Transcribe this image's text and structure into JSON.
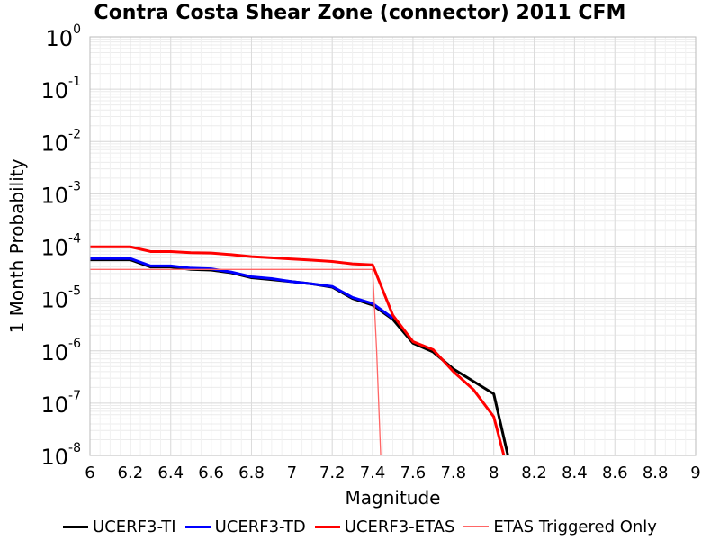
{
  "chart_data": {
    "type": "line",
    "title": "Contra Costa Shear Zone (connector) 2011 CFM",
    "xlabel": "Magnitude",
    "ylabel": "1 Month Probability",
    "xlim": [
      6,
      9
    ],
    "ylim": [
      1e-08,
      1
    ],
    "yscale": "log",
    "grid": true,
    "legend_position": "bottom",
    "x_ticks": [
      "6",
      "6.2",
      "6.4",
      "6.6",
      "6.8",
      "7",
      "7.2",
      "7.4",
      "7.6",
      "7.8",
      "8",
      "8.2",
      "8.4",
      "8.6",
      "8.8",
      "9"
    ],
    "y_ticks": [
      {
        "base": "10",
        "exp": "0"
      },
      {
        "base": "10",
        "exp": "-1"
      },
      {
        "base": "10",
        "exp": "-2"
      },
      {
        "base": "10",
        "exp": "-3"
      },
      {
        "base": "10",
        "exp": "-4"
      },
      {
        "base": "10",
        "exp": "-5"
      },
      {
        "base": "10",
        "exp": "-6"
      },
      {
        "base": "10",
        "exp": "-7"
      },
      {
        "base": "10",
        "exp": "-8"
      }
    ],
    "series": [
      {
        "name": "UCERF3-TI",
        "color": "#000000",
        "x": [
          6.0,
          6.2,
          6.3,
          6.4,
          6.5,
          6.6,
          6.7,
          6.8,
          6.9,
          7.0,
          7.1,
          7.2,
          7.3,
          7.4,
          7.5,
          7.6,
          7.7,
          7.8,
          7.9,
          8.0,
          8.07
        ],
        "y": [
          5.5e-05,
          5.5e-05,
          4e-05,
          4e-05,
          3.6e-05,
          3.5e-05,
          3.1e-05,
          2.5e-05,
          2.3e-05,
          2.1e-05,
          1.9e-05,
          1.65e-05,
          1e-05,
          7.5e-06,
          4e-06,
          1.4e-06,
          9.5e-07,
          4.5e-07,
          2.6e-07,
          1.5e-07,
          1e-08
        ]
      },
      {
        "name": "UCERF3-TD",
        "color": "#0000ff",
        "x": [
          6.0,
          6.2,
          6.3,
          6.4,
          6.5,
          6.6,
          6.7,
          6.8,
          6.9,
          7.0,
          7.1,
          7.2,
          7.3,
          7.4,
          7.5
        ],
        "y": [
          5.8e-05,
          5.8e-05,
          4.2e-05,
          4.2e-05,
          3.8e-05,
          3.7e-05,
          3.2e-05,
          2.6e-05,
          2.4e-05,
          2.1e-05,
          1.9e-05,
          1.7e-05,
          1.05e-05,
          8e-06,
          4.2e-06
        ]
      },
      {
        "name": "UCERF3-ETAS",
        "color": "#ff0000",
        "x": [
          6.0,
          6.2,
          6.3,
          6.4,
          6.5,
          6.6,
          6.7,
          6.8,
          6.9,
          7.0,
          7.1,
          7.2,
          7.3,
          7.4,
          7.5,
          7.6,
          7.7,
          7.8,
          7.9,
          8.0,
          8.05
        ],
        "y": [
          9.7e-05,
          9.7e-05,
          7.9e-05,
          7.9e-05,
          7.5e-05,
          7.4e-05,
          6.9e-05,
          6.3e-05,
          6e-05,
          5.7e-05,
          5.4e-05,
          5.1e-05,
          4.6e-05,
          4.4e-05,
          4.8e-06,
          1.5e-06,
          1.05e-06,
          4e-07,
          1.8e-07,
          5.5e-08,
          1e-08
        ]
      },
      {
        "name": "ETAS Triggered Only",
        "color": "#ff6666",
        "x": [
          6.0,
          7.4,
          7.42,
          7.44
        ],
        "y": [
          3.6e-05,
          3.6e-05,
          1e-06,
          1e-08
        ]
      }
    ]
  }
}
